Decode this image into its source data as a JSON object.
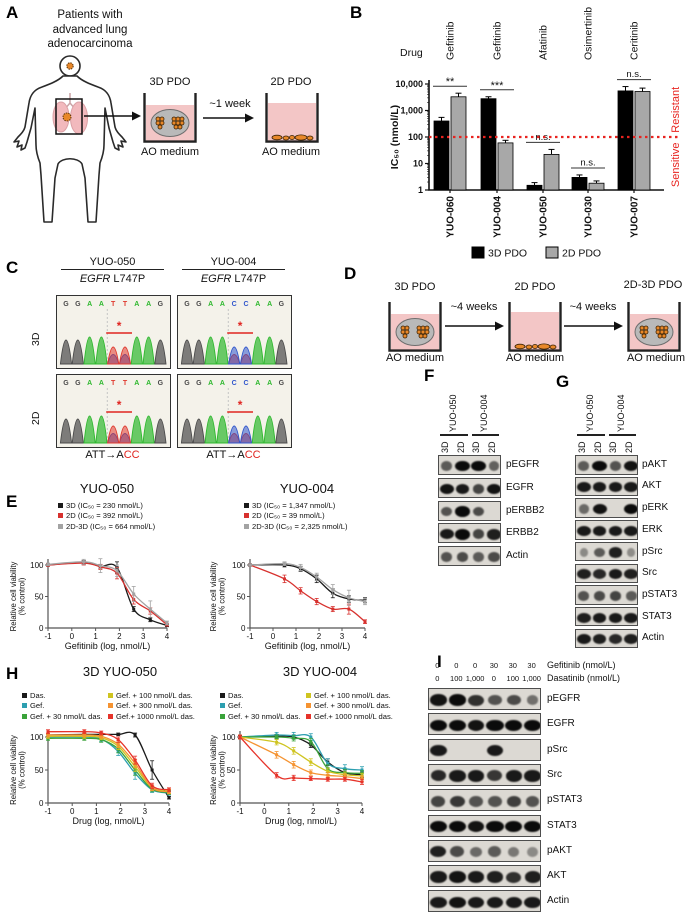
{
  "panelA": {
    "label": "A",
    "title": "Patients with\nadvanced lung\nadenocarcinoma",
    "dish1_label": "3D PDO",
    "arrow_label": "~1 week",
    "dish2_label": "2D PDO",
    "medium1": "AO medium",
    "medium2": "AO medium"
  },
  "panelB": {
    "label": "B",
    "drug_header": "Drug",
    "right_label": "Sensitive · Resistant"
  },
  "panelC": {
    "label": "C",
    "row_labels": [
      "3D",
      "2D"
    ],
    "base_colors": {
      "A": "#2eb82e",
      "T": "#e0392e",
      "G": "#4a4a4a",
      "C": "#2f55cc"
    },
    "columns": [
      {
        "sample": "YUO-050",
        "gene": "EGFR",
        "mutation": "L747P",
        "seq": [
          "G",
          "G",
          "A",
          "A",
          "T",
          "T",
          "A",
          "A",
          "G"
        ],
        "het_positions": [
          4,
          5
        ],
        "het_secondary": "C",
        "change_plain": "ATT→A",
        "change_red": "CC"
      },
      {
        "sample": "YUO-004",
        "gene": "EGFR",
        "mutation": "L747P",
        "seq": [
          "G",
          "G",
          "A",
          "A",
          "C",
          "C",
          "A",
          "A",
          "G"
        ],
        "het_positions": [
          4,
          5
        ],
        "het_secondary": "T",
        "change_plain": "ATT→A",
        "change_red": "CC"
      }
    ]
  },
  "panelD": {
    "label": "D",
    "steps": [
      "3D PDO",
      "2D PDO",
      "2D-3D PDO"
    ],
    "arrows": [
      "~4 weeks",
      "~4 weeks"
    ],
    "medium": [
      "AO medium",
      "AO medium",
      "AO medium"
    ]
  },
  "panelE": {
    "label": "E"
  },
  "panelF": {
    "label": "F",
    "samples": [
      "YUO-050",
      "YUO-004"
    ],
    "conditions": [
      "3D",
      "2D",
      "3D",
      "2D"
    ],
    "rows": [
      {
        "label": "pEGFR",
        "bands": [
          0.45,
          1.0,
          1.0,
          0.4
        ]
      },
      {
        "label": "EGFR",
        "bands": [
          0.95,
          0.9,
          0.6,
          0.95
        ]
      },
      {
        "label": "pERBB2",
        "bands": [
          0.5,
          1.0,
          0.55,
          0.04
        ]
      },
      {
        "label": "ERBB2",
        "bands": [
          0.9,
          1.0,
          0.6,
          0.85
        ]
      },
      {
        "label": "Actin",
        "bands": [
          0.5,
          0.55,
          0.45,
          0.55
        ]
      }
    ]
  },
  "panelG": {
    "label": "G",
    "samples": [
      "YUO-050",
      "YUO-004"
    ],
    "conditions": [
      "3D",
      "2D",
      "3D",
      "2D"
    ],
    "rows": [
      {
        "label": "pAKT",
        "bands": [
          0.45,
          1.0,
          0.5,
          0.95
        ]
      },
      {
        "label": "AKT",
        "bands": [
          0.9,
          0.9,
          0.9,
          0.9
        ]
      },
      {
        "label": "pERK",
        "bands": [
          0.35,
          0.95,
          0.04,
          1.0
        ]
      },
      {
        "label": "ERK",
        "bands": [
          0.9,
          0.9,
          0.9,
          0.9
        ]
      },
      {
        "label": "pSrc",
        "bands": [
          0.12,
          0.45,
          0.85,
          0.1
        ]
      },
      {
        "label": "Src",
        "bands": [
          0.85,
          0.8,
          0.9,
          0.85
        ]
      },
      {
        "label": "pSTAT3",
        "bands": [
          0.5,
          0.55,
          0.6,
          0.45
        ]
      },
      {
        "label": "STAT3",
        "bands": [
          0.85,
          0.9,
          0.9,
          0.9
        ]
      },
      {
        "label": "Actin",
        "bands": [
          0.9,
          0.85,
          0.8,
          0.85
        ]
      }
    ]
  },
  "panelH": {
    "label": "H"
  },
  "panelI": {
    "label": "I",
    "dose_rows": [
      {
        "values": [
          "0",
          "0",
          "0",
          "30",
          "30",
          "30"
        ],
        "label": "Gefitinib (nmol/L)"
      },
      {
        "values": [
          "0",
          "100",
          "1,000",
          "0",
          "100",
          "1,000"
        ],
        "label": "Dasatinib (nmol/L)"
      }
    ],
    "rows": [
      {
        "label": "pEGFR",
        "bands": [
          0.95,
          1.0,
          0.75,
          0.5,
          0.55,
          0.3
        ]
      },
      {
        "label": "EGFR",
        "bands": [
          1.0,
          1.0,
          0.95,
          1.0,
          1.0,
          1.0
        ]
      },
      {
        "label": "pSrc",
        "bands": [
          0.9,
          0.03,
          0.03,
          0.9,
          0.05,
          0.03
        ]
      },
      {
        "label": "Src",
        "bands": [
          0.8,
          0.9,
          0.9,
          0.7,
          0.9,
          0.9
        ]
      },
      {
        "label": "pSTAT3",
        "bands": [
          0.6,
          0.7,
          0.5,
          0.5,
          0.65,
          0.5
        ]
      },
      {
        "label": "STAT3",
        "bands": [
          1.0,
          1.0,
          0.95,
          1.0,
          1.0,
          1.0
        ]
      },
      {
        "label": "pAKT",
        "bands": [
          0.85,
          0.55,
          0.35,
          0.45,
          0.25,
          0.12
        ]
      },
      {
        "label": "AKT",
        "bands": [
          0.9,
          0.95,
          0.9,
          0.85,
          0.75,
          0.85
        ]
      },
      {
        "label": "Actin",
        "bands": [
          0.9,
          0.95,
          0.9,
          0.9,
          0.9,
          0.9
        ]
      }
    ]
  },
  "chart_data": [
    {
      "type": "bar",
      "log_scale": true,
      "ylabel": "IC₅₀ (nmol/L)",
      "ylim": [
        1,
        10000
      ],
      "yticks": [
        "1",
        "10",
        "100",
        "1,000",
        "10,000"
      ],
      "categories": [
        "YUO-060",
        "YUO-004",
        "YUO-050",
        "YUO-030",
        "YUO-007"
      ],
      "drugs": [
        "Gefitinib",
        "Gefitinib",
        "Afatinib",
        "Osimertinib",
        "Ceritinib"
      ],
      "threshold": 100,
      "significance": [
        "**",
        "***",
        "n.s.",
        "n.s.",
        "n.s."
      ],
      "series": [
        {
          "name": "3D PDO",
          "color": "#000000",
          "values": [
            400,
            2800,
            1.5,
            3,
            5500
          ],
          "errors": [
            150,
            500,
            0.4,
            0.7,
            2500
          ]
        },
        {
          "name": "2D PDO",
          "color": "#a8a8a8",
          "values": [
            3300,
            60,
            22,
            1.8,
            5200
          ],
          "errors": [
            1200,
            15,
            12,
            0.4,
            1800
          ]
        }
      ]
    },
    {
      "type": "line",
      "title": "YUO-050",
      "xlabel": "Gefitinib (log, nmol/L)",
      "ylabel_lines": [
        "Relative cell viability",
        "(% control)"
      ],
      "xlim": [
        -1,
        4
      ],
      "ylim": [
        0,
        110
      ],
      "x": [
        -1,
        0.5,
        1.2,
        1.9,
        2.6,
        3.3,
        4
      ],
      "series": [
        {
          "name": "3D (IC₅₀ = 230 nmol/L)",
          "color": "#1a1a1a",
          "values": [
            100,
            104,
            98,
            96,
            30,
            13,
            4
          ],
          "errors": [
            2,
            3,
            3,
            9,
            4,
            3,
            2
          ]
        },
        {
          "name": "2D (IC₅₀ = 392 nmol/L)",
          "color": "#d7312e",
          "values": [
            100,
            103,
            97,
            87,
            45,
            27,
            5
          ],
          "errors": [
            2,
            3,
            4,
            9,
            7,
            5,
            2
          ]
        },
        {
          "name": "2D-3D (IC₅₀ = 664 nmol/L)",
          "color": "#a3a3a3",
          "values": [
            101,
            105,
            99,
            91,
            54,
            30,
            8
          ],
          "errors": [
            2,
            4,
            11,
            9,
            12,
            13,
            3
          ]
        }
      ]
    },
    {
      "type": "line",
      "title": "YUO-004",
      "xlabel": "Gefitinib (log, nmol/L)",
      "ylabel_lines": [
        "Relative cell viability",
        "(% control)"
      ],
      "xlim": [
        -1,
        4
      ],
      "ylim": [
        0,
        110
      ],
      "x": [
        -1,
        0.5,
        1.2,
        1.9,
        2.6,
        3.3,
        4
      ],
      "series": [
        {
          "name": "3D (IC₅₀ = 1,347 nmol/L)",
          "color": "#1a1a1a",
          "values": [
            100,
            100,
            94,
            78,
            55,
            46,
            44
          ],
          "errors": [
            2,
            3,
            4,
            6,
            7,
            5,
            4
          ]
        },
        {
          "name": "2D (IC₅₀ = 39 nmol/L)",
          "color": "#d7312e",
          "values": [
            100,
            78,
            59,
            42,
            30,
            30,
            10
          ],
          "errors": [
            2,
            6,
            5,
            5,
            4,
            8,
            3
          ]
        },
        {
          "name": "2D-3D (IC₅₀ = 2,325 nmol/L)",
          "color": "#a3a3a3",
          "values": [
            100,
            102,
            96,
            81,
            61,
            48,
            42
          ],
          "errors": [
            2,
            3,
            5,
            6,
            8,
            12,
            5
          ]
        }
      ]
    },
    {
      "type": "line",
      "title": "3D YUO-050",
      "xlabel": "Drug (log, nmol/L)",
      "ylabel_lines": [
        "Relative cell viability",
        "(% control)"
      ],
      "xlim": [
        -1,
        4
      ],
      "ylim": [
        0,
        110
      ],
      "x": [
        -1,
        0.5,
        1.2,
        1.9,
        2.6,
        3.3,
        4
      ],
      "series": [
        {
          "name": "Das.",
          "color": "#1a1a1a",
          "values": [
            103,
            104,
            104,
            104,
            103,
            50,
            8
          ],
          "errors": [
            2,
            2,
            2,
            2,
            3,
            14,
            2
          ]
        },
        {
          "name": "Gef.",
          "color": "#2d9fb0",
          "values": [
            100,
            100,
            97,
            78,
            45,
            20,
            15
          ],
          "errors": [
            3,
            3,
            4,
            6,
            9,
            4,
            3
          ]
        },
        {
          "name": "Gef. + 30 nmol/L das.",
          "color": "#3aa33a",
          "values": [
            98,
            98,
            96,
            82,
            50,
            21,
            16
          ],
          "errors": [
            3,
            3,
            4,
            6,
            8,
            4,
            3
          ]
        },
        {
          "name": "Gef. + 100 nmol/L das.",
          "color": "#cfc420",
          "values": [
            101,
            101,
            99,
            86,
            55,
            23,
            18
          ],
          "errors": [
            3,
            3,
            3,
            5,
            7,
            4,
            3
          ]
        },
        {
          "name": "Gef. + 300 nmol/L das.",
          "color": "#f59331",
          "values": [
            103,
            103,
            101,
            89,
            60,
            23,
            17
          ],
          "errors": [
            3,
            3,
            3,
            5,
            6,
            4,
            3
          ]
        },
        {
          "name": "Gef.+ 1000 nmol/L das.",
          "color": "#e6332a",
          "values": [
            108,
            108,
            106,
            96,
            65,
            26,
            20
          ],
          "errors": [
            3,
            3,
            3,
            4,
            6,
            4,
            3
          ]
        }
      ]
    },
    {
      "type": "line",
      "title": "3D YUO-004",
      "xlabel": "Drug (log, nmol/L)",
      "ylabel_lines": [
        "Relative cell viability",
        "(% control)"
      ],
      "xlim": [
        -1,
        4
      ],
      "ylim": [
        0,
        110
      ],
      "x": [
        -1,
        0.5,
        1.2,
        1.9,
        2.6,
        3.3,
        4
      ],
      "series": [
        {
          "name": "Das.",
          "color": "#1a1a1a",
          "values": [
            100,
            101,
            100,
            88,
            62,
            46,
            43
          ],
          "errors": [
            2,
            3,
            3,
            4,
            5,
            4,
            4
          ]
        },
        {
          "name": "Gef.",
          "color": "#2d9fb0",
          "values": [
            100,
            103,
            102,
            100,
            60,
            52,
            50
          ],
          "errors": [
            3,
            4,
            5,
            5,
            7,
            6,
            5
          ]
        },
        {
          "name": "Gef. + 30 nmol/L das.",
          "color": "#3aa33a",
          "values": [
            100,
            100,
            98,
            93,
            52,
            46,
            45
          ],
          "errors": [
            3,
            3,
            4,
            5,
            6,
            5,
            4
          ]
        },
        {
          "name": "Gef. + 100 nmol/L das.",
          "color": "#cfc420",
          "values": [
            100,
            92,
            79,
            62,
            48,
            43,
            41
          ],
          "errors": [
            3,
            4,
            5,
            5,
            5,
            4,
            4
          ]
        },
        {
          "name": "Gef. + 300 nmol/L das.",
          "color": "#f59331",
          "values": [
            100,
            73,
            58,
            46,
            42,
            40,
            37
          ],
          "errors": [
            3,
            5,
            5,
            4,
            4,
            4,
            4
          ]
        },
        {
          "name": "Gef.+ 1000 nmol/L das.",
          "color": "#e6332a",
          "values": [
            100,
            42,
            38,
            37,
            36,
            36,
            32
          ],
          "errors": [
            3,
            4,
            4,
            3,
            3,
            3,
            4
          ]
        }
      ]
    }
  ]
}
